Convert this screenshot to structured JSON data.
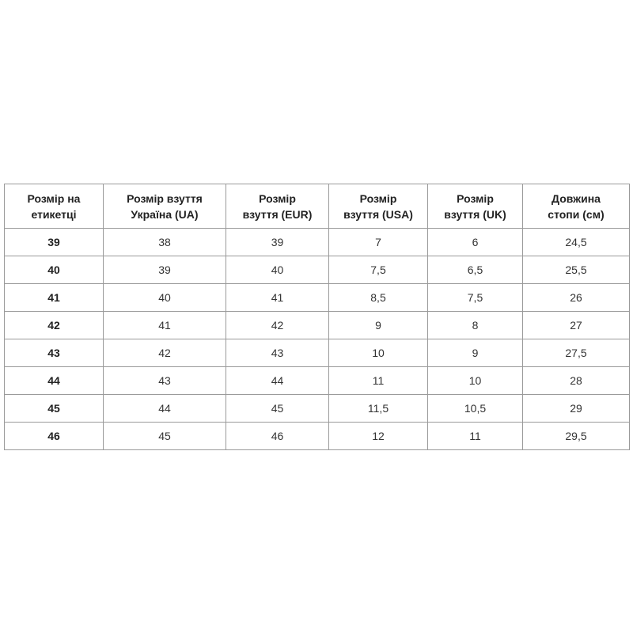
{
  "table": {
    "header": [
      "Розмір на\nетикетці",
      "Розмір взуття\nУкраїна (UA)",
      "Розмір\nвзуття (EUR)",
      "Розмір\nвзуття (USA)",
      "Розмір\nвзуття (UK)",
      "Довжина\nстопи (см)"
    ],
    "rows": [
      [
        "39",
        "38",
        "39",
        "7",
        "6",
        "24,5"
      ],
      [
        "40",
        "39",
        "40",
        "7,5",
        "6,5",
        "25,5"
      ],
      [
        "41",
        "40",
        "41",
        "8,5",
        "7,5",
        "26"
      ],
      [
        "42",
        "41",
        "42",
        "9",
        "8",
        "27"
      ],
      [
        "43",
        "42",
        "43",
        "10",
        "9",
        "27,5"
      ],
      [
        "44",
        "43",
        "44",
        "11",
        "10",
        "28"
      ],
      [
        "45",
        "44",
        "45",
        "11,5",
        "10,5",
        "29"
      ],
      [
        "46",
        "45",
        "46",
        "12",
        "11",
        "29,5"
      ]
    ]
  }
}
